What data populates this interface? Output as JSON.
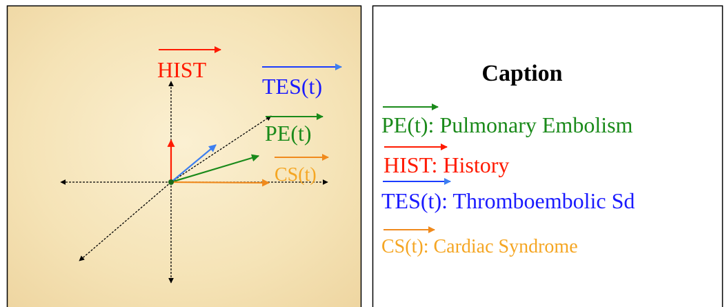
{
  "diagram": {
    "vectors": [
      {
        "label": "HIST"
      },
      {
        "label": "TES(t)"
      },
      {
        "label": "PE(t)"
      },
      {
        "label": "CS(t)"
      }
    ]
  },
  "caption": {
    "title": "Caption",
    "entries": [
      {
        "symbol": "PE(t)",
        "description": ": Pulmonary Embolism"
      },
      {
        "symbol": "HIST",
        "description": ": History"
      },
      {
        "symbol": "TES(t)",
        "description": ": Thromboembolic Sd"
      },
      {
        "symbol": "CS(t)",
        "description": ": Cardiac Syndrome"
      }
    ]
  }
}
